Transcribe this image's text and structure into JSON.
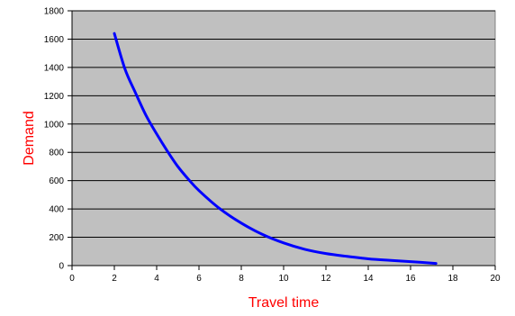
{
  "chart_data": {
    "type": "line",
    "title": "",
    "xlabel": "Travel time",
    "ylabel": "Demand",
    "xlim": [
      0,
      20
    ],
    "ylim": [
      0,
      1800
    ],
    "x_ticks": [
      0,
      2,
      4,
      6,
      8,
      10,
      12,
      14,
      16,
      18,
      20
    ],
    "y_ticks": [
      0,
      200,
      400,
      600,
      800,
      1000,
      1200,
      1400,
      1600,
      1800
    ],
    "grid": "horizontal",
    "legend": "none",
    "colors": {
      "plot_background": "#c0c0c0",
      "line": "#0000ff",
      "axis_title": "#ff0000",
      "gridline": "#000000"
    },
    "series": [
      {
        "x": [
          2.0,
          2.5,
          3.0,
          3.5,
          4.0,
          4.5,
          5.0,
          5.5,
          6.0,
          7.0,
          8.0,
          9.0,
          10.0,
          11.0,
          12.0,
          13.0,
          14.0,
          15.0,
          16.0,
          17.2
        ],
        "values": [
          1640,
          1390,
          1220,
          1060,
          930,
          810,
          700,
          610,
          530,
          400,
          300,
          220,
          160,
          115,
          85,
          65,
          48,
          37,
          28,
          15
        ]
      }
    ]
  }
}
